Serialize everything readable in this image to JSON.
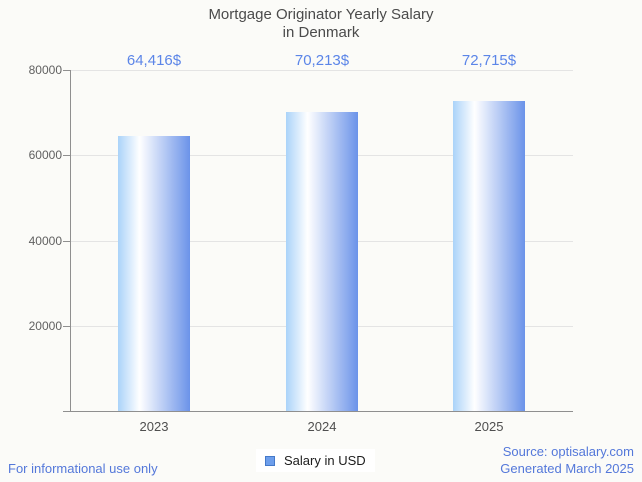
{
  "chart_data": {
    "type": "bar",
    "title": "Mortgage Originator Yearly Salary in Denmark",
    "title_lines": [
      "Mortgage Originator Yearly Salary",
      "in Denmark"
    ],
    "categories": [
      "2023",
      "2024",
      "2025"
    ],
    "series": [
      {
        "name": "Salary in USD",
        "values": [
          64416,
          70213,
          72715
        ]
      }
    ],
    "value_labels": [
      "64,416$",
      "70,213$",
      "72,715$"
    ],
    "xlabel": "",
    "ylabel": "",
    "ylim": [
      0,
      80000
    ],
    "yticks": [
      20000,
      40000,
      60000,
      80000
    ],
    "ytick_labels": [
      "20000",
      "40000",
      "60000",
      "80000"
    ],
    "grid": true,
    "legend_position": "bottom"
  },
  "legend": {
    "label": "Salary in USD"
  },
  "footer": {
    "disclaimer": "For informational use only",
    "source_line1": "Source: optisalary.com",
    "source_line2": "Generated March 2025"
  },
  "colors": {
    "background": "#fbfbf8",
    "bar_gradient_left": "#aad3f9",
    "bar_gradient_mid": "#ffffff",
    "bar_gradient_right": "#6b93e9",
    "value_label_blue": "#5b85e8",
    "footer_blue": "#5478da",
    "legend_swatch": "#6d9eeb",
    "legend_swatch_border": "#4479c9",
    "axis": "#8f8f8f",
    "gridline": "#e4e4e4",
    "title_text": "#4b4b4b"
  }
}
